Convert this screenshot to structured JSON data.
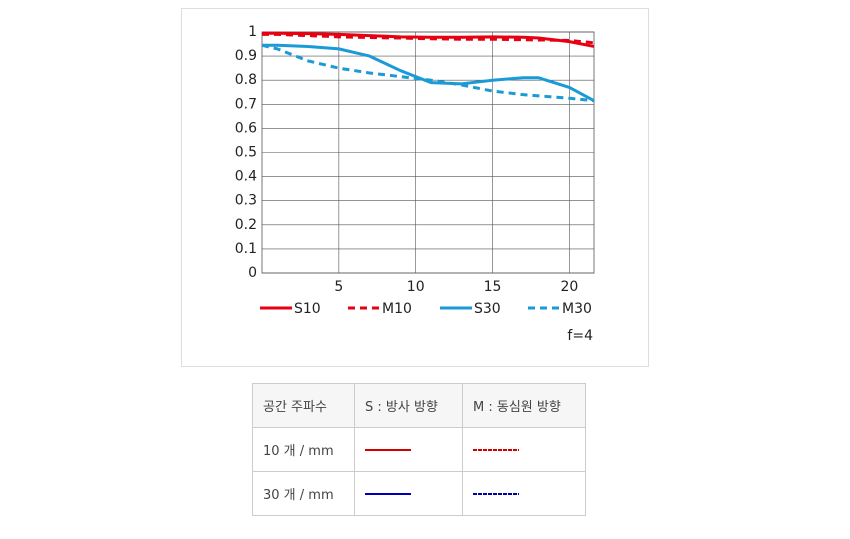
{
  "chart_data": {
    "type": "line",
    "x": [
      0,
      1,
      3,
      5,
      7,
      9,
      11,
      13,
      15,
      17,
      18,
      20,
      21.6
    ],
    "series": [
      {
        "name": "S10",
        "color": "#e60012",
        "line_style": "solid",
        "values": [
          0.995,
          0.995,
          0.993,
          0.99,
          0.985,
          0.98,
          0.978,
          0.978,
          0.98,
          0.978,
          0.975,
          0.96,
          0.94
        ]
      },
      {
        "name": "M10",
        "color": "#e60012",
        "line_style": "dashed",
        "values": [
          0.99,
          0.99,
          0.985,
          0.98,
          0.977,
          0.975,
          0.972,
          0.97,
          0.97,
          0.968,
          0.967,
          0.965,
          0.955
        ]
      },
      {
        "name": "S30",
        "color": "#1a9ad6",
        "line_style": "solid",
        "values": [
          0.945,
          0.945,
          0.94,
          0.93,
          0.9,
          0.84,
          0.79,
          0.785,
          0.8,
          0.81,
          0.81,
          0.77,
          0.715
        ]
      },
      {
        "name": "M30",
        "color": "#1a9ad6",
        "line_style": "dashed",
        "values": [
          0.945,
          0.93,
          0.88,
          0.85,
          0.83,
          0.815,
          0.8,
          0.78,
          0.755,
          0.74,
          0.735,
          0.725,
          0.715
        ]
      }
    ],
    "xlim": [
      0,
      21.6
    ],
    "xticks": [
      5,
      10,
      15,
      20
    ],
    "ylim": [
      0,
      1
    ],
    "yticks": [
      0,
      0.1,
      0.2,
      0.3,
      0.4,
      0.5,
      0.6,
      0.7,
      0.8,
      0.9,
      1
    ],
    "grid": true,
    "annotation": "f=4"
  },
  "table": {
    "header": [
      "공간 주파수",
      "S : 방사 방향",
      "M : 동심원 방향"
    ],
    "rows": [
      [
        "10 개 / mm"
      ],
      [
        "30 개 / mm"
      ]
    ]
  }
}
